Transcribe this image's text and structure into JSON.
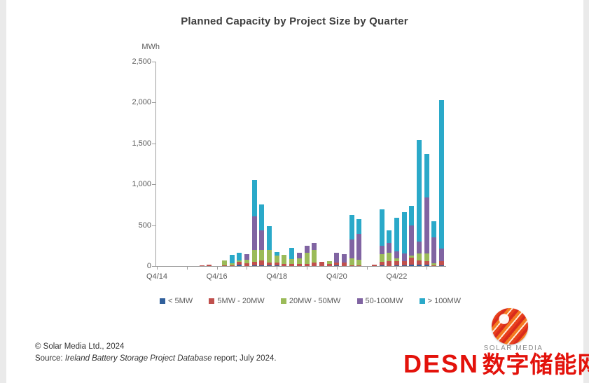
{
  "page": {
    "title": "Planned Capacity by Project Size by Quarter",
    "y_axis_unit": "MWh",
    "footer": {
      "copyright": "© Solar Media Ltd., 2024",
      "source_prefix": "Source: ",
      "source_italic": "Ireland Battery Storage Project Database",
      "source_suffix": " report; July 2024."
    },
    "logo": {
      "brand": "SOLAR MEDIA",
      "watermark_latin": "DESN",
      "watermark_cn": "数字储能网",
      "watermark_color": "#e3120b"
    }
  },
  "chart_data": {
    "type": "bar",
    "stacked": true,
    "title": "Planned Capacity by Project Size by Quarter",
    "xlabel": "",
    "ylabel": "MWh",
    "ylim": [
      0,
      2500
    ],
    "grid": false,
    "legend_position": "bottom",
    "ytick_values": [
      0,
      500,
      1000,
      1500,
      2000,
      2500
    ],
    "ytick_labels": [
      "0",
      "500",
      "1,000",
      "1,500",
      "2,000",
      "2,500"
    ],
    "xtick_labels_shown": [
      "Q4/14",
      "Q4/16",
      "Q4/18",
      "Q4/20",
      "Q4/22"
    ],
    "categories": [
      "Q4/14",
      "Q1/15",
      "Q2/15",
      "Q3/15",
      "Q4/15",
      "Q1/16",
      "Q2/16",
      "Q3/16",
      "Q4/16",
      "Q1/17",
      "Q2/17",
      "Q3/17",
      "Q4/17",
      "Q1/18",
      "Q2/18",
      "Q3/18",
      "Q4/18",
      "Q1/19",
      "Q2/19",
      "Q3/19",
      "Q4/19",
      "Q1/20",
      "Q2/20",
      "Q3/20",
      "Q4/20",
      "Q1/21",
      "Q2/21",
      "Q3/21",
      "Q4/21",
      "Q1/22",
      "Q2/22",
      "Q3/22",
      "Q4/22",
      "Q1/23",
      "Q2/23",
      "Q3/23",
      "Q4/23",
      "Q1/24",
      "Q2/24"
    ],
    "series": [
      {
        "name": "< 5MW",
        "color": "#31609c",
        "values": [
          0,
          0,
          0,
          0,
          0,
          0,
          0,
          0,
          0,
          0,
          0,
          15,
          0,
          12,
          12,
          8,
          10,
          0,
          0,
          0,
          0,
          0,
          0,
          0,
          10,
          0,
          0,
          0,
          0,
          0,
          10,
          0,
          10,
          12,
          13,
          20,
          13,
          0,
          10
        ]
      },
      {
        "name": "5MW - 20MW",
        "color": "#c0504d",
        "values": [
          0,
          0,
          0,
          0,
          0,
          0,
          12,
          15,
          0,
          10,
          10,
          35,
          35,
          43,
          55,
          32,
          35,
          25,
          25,
          25,
          25,
          40,
          50,
          23,
          35,
          40,
          10,
          10,
          0,
          15,
          40,
          60,
          50,
          50,
          90,
          45,
          50,
          10,
          50
        ]
      },
      {
        "name": "20MW - 50MW",
        "color": "#9bbb59",
        "values": [
          0,
          0,
          0,
          0,
          0,
          0,
          0,
          0,
          0,
          57,
          25,
          15,
          45,
          140,
          128,
          155,
          80,
          115,
          57,
          70,
          140,
          160,
          0,
          35,
          0,
          0,
          85,
          65,
          0,
          0,
          95,
          100,
          35,
          0,
          25,
          85,
          88,
          25,
          0
        ]
      },
      {
        "name": "50-100MW",
        "color": "#8064a2",
        "values": [
          0,
          0,
          0,
          0,
          0,
          0,
          0,
          0,
          0,
          0,
          0,
          0,
          65,
          415,
          243,
          0,
          0,
          0,
          0,
          70,
          85,
          80,
          0,
          0,
          115,
          105,
          230,
          320,
          0,
          0,
          105,
          122,
          85,
          88,
          365,
          150,
          685,
          315,
          150
        ]
      },
      {
        "name": "> 100MW",
        "color": "#2aa9c9",
        "values": [
          0,
          0,
          0,
          0,
          0,
          0,
          0,
          0,
          0,
          0,
          105,
          100,
          0,
          440,
          312,
          295,
          50,
          0,
          143,
          0,
          0,
          0,
          0,
          0,
          0,
          0,
          300,
          175,
          0,
          0,
          445,
          158,
          415,
          510,
          247,
          1240,
          534,
          200,
          1820
        ]
      }
    ]
  }
}
